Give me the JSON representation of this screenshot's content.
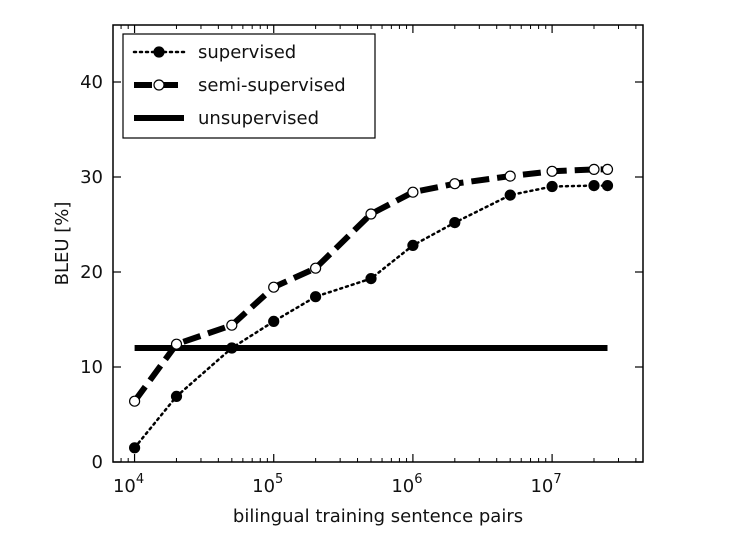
{
  "chart_data": {
    "type": "line",
    "title": "",
    "xlabel": "bilingual training sentence pairs",
    "ylabel": "BLEU [%]",
    "xscale": "log",
    "xlim": [
      7000,
      45000000
    ],
    "ylim": [
      0,
      46
    ],
    "grid": false,
    "legend_position": "top-left",
    "x_ticks": [
      {
        "base": "10",
        "exp": "4",
        "value": 10000
      },
      {
        "base": "10",
        "exp": "5",
        "value": 100000
      },
      {
        "base": "10",
        "exp": "6",
        "value": 1000000
      },
      {
        "base": "10",
        "exp": "7",
        "value": 10000000
      }
    ],
    "y_ticks": [
      0,
      10,
      20,
      30,
      40
    ],
    "series": [
      {
        "name": "supervised",
        "style": "dotted",
        "marker": "filled-circle",
        "color": "#000000",
        "x": [
          10000,
          20000,
          50000,
          100000,
          200000,
          500000,
          1000000,
          2000000,
          5000000,
          10000000,
          20000000,
          25000000
        ],
        "y": [
          1.5,
          6.9,
          12.0,
          14.8,
          17.4,
          19.3,
          22.8,
          25.2,
          28.1,
          29.0,
          29.1,
          29.1
        ]
      },
      {
        "name": "semi-supervised",
        "style": "dashed",
        "marker": "open-circle",
        "color": "#000000",
        "x": [
          10000,
          20000,
          50000,
          100000,
          200000,
          500000,
          1000000,
          2000000,
          5000000,
          10000000,
          20000000,
          25000000
        ],
        "y": [
          6.4,
          12.4,
          14.4,
          18.4,
          20.4,
          26.1,
          28.4,
          29.3,
          30.1,
          30.6,
          30.8,
          30.8
        ]
      },
      {
        "name": "unsupervised",
        "style": "solid",
        "marker": "none",
        "color": "#000000",
        "x": [
          10000,
          25000000
        ],
        "y": [
          12.0,
          12.0
        ]
      }
    ]
  }
}
